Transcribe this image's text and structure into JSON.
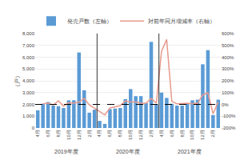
{
  "chart_data": {
    "type": "bar",
    "ylabel": "（戸）",
    "categories": [
      "4月",
      null,
      "6月",
      null,
      "8月",
      null,
      "10月",
      null,
      "12月",
      null,
      "2月",
      null,
      "4月",
      null,
      "6月",
      null,
      "8月",
      null,
      "10月",
      null,
      "12月",
      null,
      "2月",
      null,
      "4月",
      null,
      "6月",
      null,
      "8月",
      null,
      "10月",
      null,
      "12月",
      null,
      "2月",
      null
    ],
    "groups": [
      "2019年度",
      "2020年度",
      "2021年度"
    ],
    "series": [
      {
        "name": "発売戸数（左軸）",
        "type": "bar",
        "color": "#5B9BD5",
        "values": [
          1500,
          2050,
          2200,
          1900,
          1850,
          1700,
          2350,
          2350,
          6400,
          3200,
          1300,
          1550,
          600,
          350,
          1600,
          1650,
          1700,
          2450,
          3300,
          2700,
          2700,
          2100,
          7300,
          2000,
          3000,
          2550,
          2050,
          1900,
          1900,
          2100,
          2350,
          2400,
          5400,
          6600,
          1100,
          2400
        ]
      },
      {
        "name": "対前年同月増減率（右軸）",
        "type": "line",
        "axis": "y2",
        "color": "#E8998D",
        "values": [
          null,
          5,
          10,
          -5,
          30,
          -15,
          15,
          10,
          20,
          50,
          -5,
          null,
          -60,
          -90,
          -30,
          -20,
          -10,
          30,
          20,
          20,
          10,
          10,
          50,
          10,
          450,
          550,
          25,
          5,
          10,
          10,
          5,
          10,
          80,
          100,
          -80,
          20
        ]
      }
    ],
    "reference_line": 2000,
    "ylim": [
      0,
      8000
    ],
    "yticks": [
      0,
      {
        "value": 1000,
        "label": "1,000"
      },
      {
        "value": 2000,
        "label": "2,000"
      },
      {
        "value": 3000,
        "label": "3,000"
      },
      {
        "value": 4000,
        "label": "4,000"
      },
      {
        "value": 5000,
        "label": "5,000"
      },
      {
        "value": 6000,
        "label": "6,000"
      },
      {
        "value": 7000,
        "label": "7,000"
      },
      {
        "value": 8000,
        "label": "8,000"
      }
    ],
    "y2lim": [
      -200,
      600
    ],
    "y2ticks": [
      {
        "value": -200,
        "label": "-200%"
      },
      {
        "value": -100,
        "label": "-100%"
      },
      {
        "value": 0,
        "label": "0%"
      },
      {
        "value": 100,
        "label": "100%"
      },
      {
        "value": 200,
        "label": "200%"
      },
      {
        "value": 300,
        "label": "300%"
      },
      {
        "value": 400,
        "label": "400%"
      },
      {
        "value": 500,
        "label": "500%"
      },
      {
        "value": 600,
        "label": "600%"
      }
    ],
    "grid": true,
    "legend": "upper left"
  }
}
